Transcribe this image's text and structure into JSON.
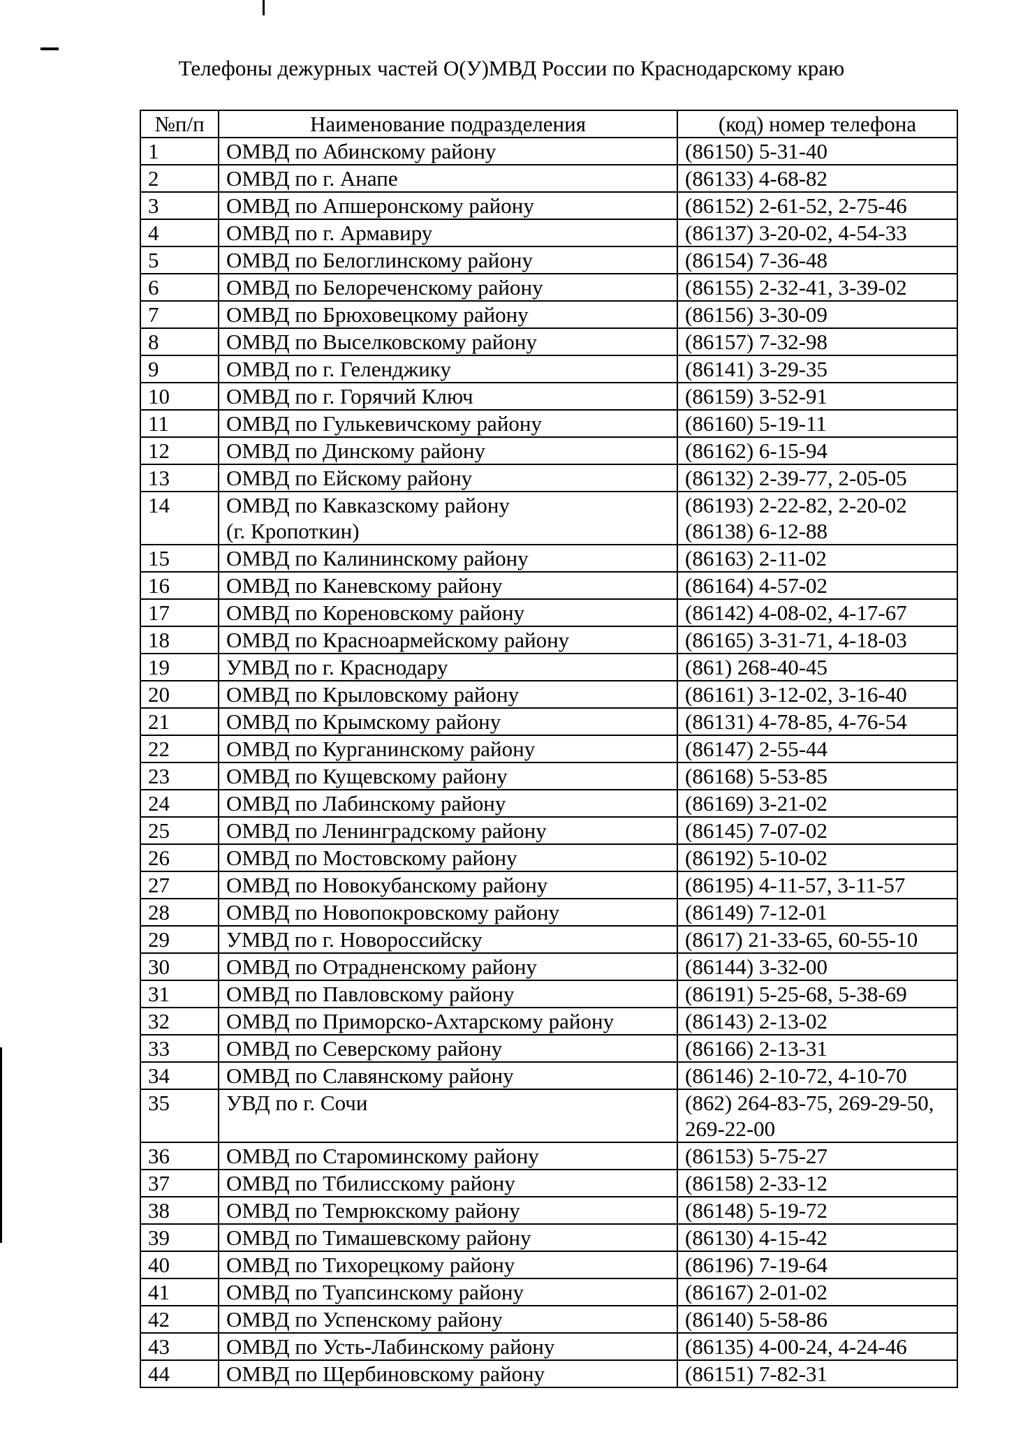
{
  "title": "Телефоны дежурных частей О(У)МВД России по Краснодарскому краю",
  "table": {
    "headers": [
      "№п/п",
      "Наименование подразделения",
      "(код) номер телефона"
    ],
    "rows": [
      {
        "n": "1",
        "name": [
          "ОМВД по Абинскому району"
        ],
        "phone": [
          "(86150) 5-31-40"
        ]
      },
      {
        "n": "2",
        "name": [
          "ОМВД по г. Анапе"
        ],
        "phone": [
          "(86133) 4-68-82"
        ]
      },
      {
        "n": "3",
        "name": [
          "ОМВД по Апшеронскому району"
        ],
        "phone": [
          "(86152) 2-61-52, 2-75-46"
        ]
      },
      {
        "n": "4",
        "name": [
          "ОМВД по г. Армавиру"
        ],
        "phone": [
          "(86137) 3-20-02, 4-54-33"
        ]
      },
      {
        "n": "5",
        "name": [
          "ОМВД по Белоглинскому району"
        ],
        "phone": [
          "(86154) 7-36-48"
        ]
      },
      {
        "n": "6",
        "name": [
          "ОМВД по Белореченскому району"
        ],
        "phone": [
          "(86155) 2-32-41, 3-39-02"
        ]
      },
      {
        "n": "7",
        "name": [
          "ОМВД по Брюховецкому району"
        ],
        "phone": [
          "(86156) 3-30-09"
        ]
      },
      {
        "n": "8",
        "name": [
          "ОМВД по Выселковскому району"
        ],
        "phone": [
          "(86157) 7-32-98"
        ]
      },
      {
        "n": "9",
        "name": [
          "ОМВД по г. Геленджику"
        ],
        "phone": [
          "(86141) 3-29-35"
        ]
      },
      {
        "n": "10",
        "name": [
          "ОМВД по г. Горячий Ключ"
        ],
        "phone": [
          "(86159) 3-52-91"
        ]
      },
      {
        "n": "11",
        "name": [
          "ОМВД по Гулькевичскому району"
        ],
        "phone": [
          "(86160) 5-19-11"
        ]
      },
      {
        "n": "12",
        "name": [
          "ОМВД по Динскому району"
        ],
        "phone": [
          "(86162) 6-15-94"
        ]
      },
      {
        "n": "13",
        "name": [
          "ОМВД по Ейскому району"
        ],
        "phone": [
          "(86132) 2-39-77, 2-05-05"
        ]
      },
      {
        "n": "14",
        "name": [
          "ОМВД по Кавказскому району",
          "(г. Кропоткин)"
        ],
        "phone": [
          "(86193) 2-22-82, 2-20-02",
          "(86138) 6-12-88"
        ]
      },
      {
        "n": "15",
        "name": [
          "ОМВД по Калининскому району"
        ],
        "phone": [
          "(86163) 2-11-02"
        ]
      },
      {
        "n": "16",
        "name": [
          "ОМВД по Каневскому району"
        ],
        "phone": [
          "(86164) 4-57-02"
        ]
      },
      {
        "n": "17",
        "name": [
          "ОМВД по Кореновскому району"
        ],
        "phone": [
          "(86142) 4-08-02, 4-17-67"
        ]
      },
      {
        "n": "18",
        "name": [
          "ОМВД по Красноармейскому району"
        ],
        "phone": [
          "(86165) 3-31-71, 4-18-03"
        ]
      },
      {
        "n": "19",
        "name": [
          "УМВД по г. Краснодару"
        ],
        "phone": [
          "(861) 268-40-45"
        ]
      },
      {
        "n": "20",
        "name": [
          "ОМВД по Крыловскому району"
        ],
        "phone": [
          "(86161) 3-12-02, 3-16-40"
        ]
      },
      {
        "n": "21",
        "name": [
          "ОМВД по Крымскому району"
        ],
        "phone": [
          "(86131) 4-78-85, 4-76-54"
        ]
      },
      {
        "n": "22",
        "name": [
          "ОМВД по Курганинскому району"
        ],
        "phone": [
          "(86147) 2-55-44"
        ]
      },
      {
        "n": "23",
        "name": [
          "ОМВД по Кущевскому району"
        ],
        "phone": [
          "(86168) 5-53-85"
        ]
      },
      {
        "n": "24",
        "name": [
          "ОМВД по Лабинскому району"
        ],
        "phone": [
          "(86169) 3-21-02"
        ]
      },
      {
        "n": "25",
        "name": [
          "ОМВД по Ленинградскому району"
        ],
        "phone": [
          "(86145) 7-07-02"
        ]
      },
      {
        "n": "26",
        "name": [
          "ОМВД по Мостовскому району"
        ],
        "phone": [
          "(86192) 5-10-02"
        ]
      },
      {
        "n": "27",
        "name": [
          "ОМВД по Новокубанскому району"
        ],
        "phone": [
          "(86195) 4-11-57, 3-11-57"
        ]
      },
      {
        "n": "28",
        "name": [
          "ОМВД по Новопокровскому району"
        ],
        "phone": [
          "(86149) 7-12-01"
        ]
      },
      {
        "n": "29",
        "name": [
          "УМВД по г. Новороссийску"
        ],
        "phone": [
          "(8617) 21-33-65, 60-55-10"
        ]
      },
      {
        "n": "30",
        "name": [
          "ОМВД по Отрадненскому району"
        ],
        "phone": [
          "(86144) 3-32-00"
        ]
      },
      {
        "n": "31",
        "name": [
          "ОМВД по Павловскому району"
        ],
        "phone": [
          "(86191) 5-25-68, 5-38-69"
        ]
      },
      {
        "n": "32",
        "name": [
          "ОМВД по Приморско-Ахтарскому району"
        ],
        "phone": [
          "(86143) 2-13-02"
        ]
      },
      {
        "n": "33",
        "name": [
          "ОМВД по Северскому району"
        ],
        "phone": [
          "(86166) 2-13-31"
        ]
      },
      {
        "n": "34",
        "name": [
          "ОМВД по Славянскому району"
        ],
        "phone": [
          "(86146) 2-10-72, 4-10-70"
        ]
      },
      {
        "n": "35",
        "name": [
          "УВД по г. Сочи"
        ],
        "phone": [
          "(862) 264-83-75, 269-29-50,",
          "269-22-00"
        ]
      },
      {
        "n": "36",
        "name": [
          "ОМВД по Староминскому району"
        ],
        "phone": [
          "(86153) 5-75-27"
        ]
      },
      {
        "n": "37",
        "name": [
          "ОМВД по Тбилисскому району"
        ],
        "phone": [
          "(86158) 2-33-12"
        ]
      },
      {
        "n": "38",
        "name": [
          "ОМВД по Темрюкскому району"
        ],
        "phone": [
          "(86148) 5-19-72"
        ]
      },
      {
        "n": "39",
        "name": [
          "ОМВД по Тимашевскому району"
        ],
        "phone": [
          "(86130) 4-15-42"
        ]
      },
      {
        "n": "40",
        "name": [
          "ОМВД по Тихорецкому району"
        ],
        "phone": [
          "(86196) 7-19-64"
        ]
      },
      {
        "n": "41",
        "name": [
          "ОМВД по Туапсинскому району"
        ],
        "phone": [
          "(86167) 2-01-02"
        ]
      },
      {
        "n": "42",
        "name": [
          "ОМВД по Успенскому району"
        ],
        "phone": [
          "(86140) 5-58-86"
        ]
      },
      {
        "n": "43",
        "name": [
          "ОМВД по Усть-Лабинскому району"
        ],
        "phone": [
          "(86135) 4-00-24, 4-24-46"
        ]
      },
      {
        "n": "44",
        "name": [
          "ОМВД по Щербиновскому району"
        ],
        "phone": [
          "(86151) 7-82-31"
        ]
      }
    ]
  }
}
